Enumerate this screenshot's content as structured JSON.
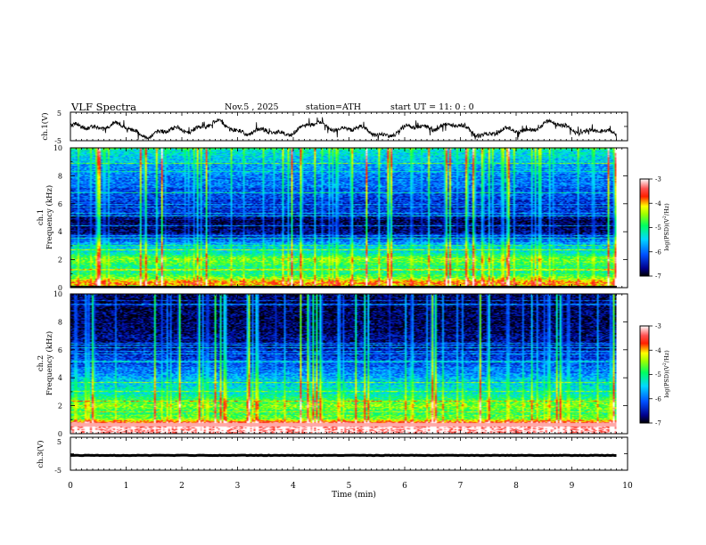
{
  "header": {
    "title": "VLF  Spectra",
    "date": "Nov.5  , 2025",
    "station": "station=ATH",
    "start": "start  UT  =    11: 0  : 0"
  },
  "chart_data": {
    "type": "heatmap",
    "title": "VLF  Spectra",
    "xlabel": "Time  (min)",
    "xlim": [
      0,
      10
    ],
    "xticks": [
      "0",
      "1",
      "2",
      "3",
      "4",
      "5",
      "6",
      "7",
      "8",
      "9",
      "10"
    ],
    "panels": [
      {
        "id": "ch1-voltage",
        "type": "line",
        "ylabel": "ch.1(V)",
        "ylim": [
          -5,
          5
        ],
        "yticks": [
          "5",
          "-5"
        ],
        "x_end": 9.8,
        "waveform": "noisy trace oscillating roughly between -4 and 2 V"
      },
      {
        "id": "ch1-spectrogram",
        "type": "heatmap",
        "ylabel": [
          "ch.1",
          "Frequency  (kHz)"
        ],
        "ylim": [
          0,
          10
        ],
        "yticks": [
          "0",
          "2",
          "4",
          "6",
          "8",
          "10"
        ],
        "x_end": 9.8,
        "colorbar": {
          "label": "log(PSD) (V²/Hz)",
          "ticks": [
            "-3",
            "-4",
            "-5",
            "-6",
            "-7"
          ],
          "range": [
            -7,
            -3
          ]
        },
        "freq_profile_khz": [
          [
            0,
            -4.4
          ],
          [
            0.3,
            -3.8
          ],
          [
            0.6,
            -4.4
          ],
          [
            1.0,
            -5.0
          ],
          [
            1.5,
            -5.0
          ],
          [
            2.0,
            -4.6
          ],
          [
            2.5,
            -5.3
          ],
          [
            3.0,
            -5.5
          ],
          [
            3.5,
            -6.2
          ],
          [
            4.0,
            -6.7
          ],
          [
            4.8,
            -6.8
          ],
          [
            5.3,
            -6.3
          ],
          [
            5.8,
            -6.4
          ],
          [
            6.5,
            -6.2
          ],
          [
            7.5,
            -6.0
          ],
          [
            8.5,
            -5.8
          ],
          [
            9.3,
            -5.5
          ],
          [
            10.0,
            -5.2
          ]
        ]
      },
      {
        "id": "ch2-spectrogram",
        "type": "heatmap",
        "ylabel": [
          "ch.2",
          "Frequency  (kHz)"
        ],
        "ylim": [
          0,
          10
        ],
        "yticks": [
          "0",
          "2",
          "4",
          "6",
          "8",
          "10"
        ],
        "x_end": 9.8,
        "colorbar": {
          "label": "log(PSD) (V²/Hz)",
          "ticks": [
            "-3",
            "-4",
            "-5",
            "-6",
            "-7"
          ],
          "range": [
            -7,
            -3
          ]
        },
        "freq_profile_khz": [
          [
            0,
            -3.2
          ],
          [
            0.7,
            -3.2
          ],
          [
            1.0,
            -4.5
          ],
          [
            1.5,
            -4.9
          ],
          [
            2.0,
            -4.5
          ],
          [
            2.5,
            -5.0
          ],
          [
            3.0,
            -5.3
          ],
          [
            3.5,
            -5.4
          ],
          [
            4.0,
            -5.7
          ],
          [
            4.7,
            -6.0
          ],
          [
            5.5,
            -6.3
          ],
          [
            6.5,
            -6.6
          ],
          [
            8.0,
            -6.8
          ],
          [
            10.0,
            -6.8
          ]
        ]
      },
      {
        "id": "ch3-voltage",
        "type": "line",
        "ylabel": "ch.3(V)",
        "ylim": [
          -5,
          5
        ],
        "yticks": [
          "5",
          "-5"
        ],
        "x_end": 9.8,
        "level_v": -0.5
      }
    ]
  },
  "colors": {
    "scale": [
      "#000000",
      "#0000a0",
      "#0060ff",
      "#00e0ff",
      "#00ff40",
      "#ffff00",
      "#ff0000",
      "#ffffff"
    ]
  }
}
